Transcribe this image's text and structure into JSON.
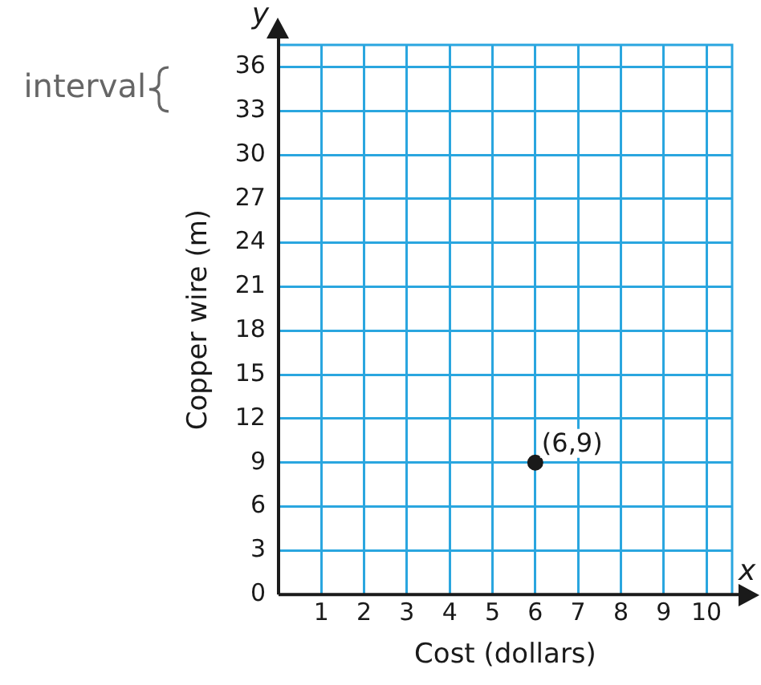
{
  "chart_data": {
    "type": "scatter",
    "xlabel": "Cost (dollars)",
    "ylabel": "Copper wire (m)",
    "x": [
      6
    ],
    "values": [
      9
    ],
    "color": "#1a1a1a",
    "marker": "circle",
    "xlim": [
      0,
      10.6
    ],
    "xticks": [
      1,
      2,
      3,
      4,
      5,
      6,
      7,
      8,
      9,
      10
    ],
    "ylim": [
      0,
      37.5
    ],
    "yticks": [
      {
        "value": 0,
        "label": "0"
      },
      3,
      6,
      9,
      12,
      15,
      18,
      21,
      24,
      27,
      30,
      33,
      36
    ],
    "grid": true,
    "annotations": [
      "interval",
      "x",
      "y",
      {
        "text": "(6,9)",
        "x": 6,
        "y": 9
      }
    ]
  }
}
